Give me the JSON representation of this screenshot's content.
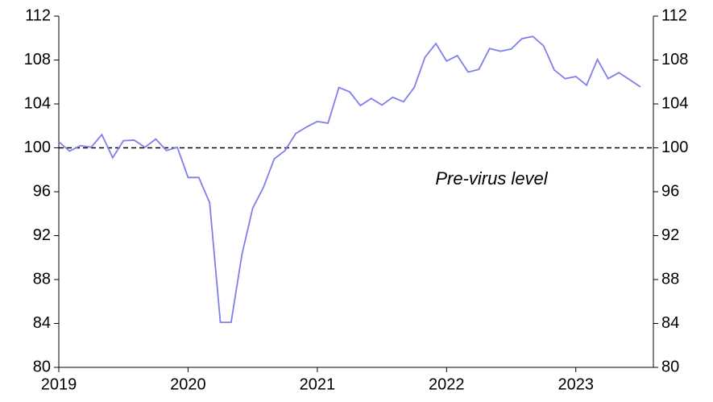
{
  "chart_data": {
    "type": "line",
    "x": [
      2019.0,
      2019.083,
      2019.167,
      2019.25,
      2019.333,
      2019.417,
      2019.5,
      2019.583,
      2019.667,
      2019.75,
      2019.833,
      2019.917,
      2020.0,
      2020.083,
      2020.167,
      2020.25,
      2020.333,
      2020.417,
      2020.5,
      2020.583,
      2020.667,
      2020.75,
      2020.833,
      2020.917,
      2021.0,
      2021.083,
      2021.167,
      2021.25,
      2021.333,
      2021.417,
      2021.5,
      2021.583,
      2021.667,
      2021.75,
      2021.833,
      2021.917,
      2022.0,
      2022.083,
      2022.167,
      2022.25,
      2022.333,
      2022.417,
      2022.5,
      2022.583,
      2022.667,
      2022.75,
      2022.833,
      2022.917,
      2023.0,
      2023.083,
      2023.167,
      2023.25,
      2023.333,
      2023.417,
      2023.5
    ],
    "series": [
      {
        "color": "#7f7fea",
        "values": [
          100.55,
          99.7,
          100.2,
          100.05,
          101.2,
          99.1,
          100.65,
          100.7,
          100.05,
          100.8,
          99.75,
          100.05,
          97.3,
          97.3,
          95.0,
          84.1,
          84.1,
          90.3,
          94.5,
          96.4,
          99.0,
          99.75,
          101.3,
          101.9,
          102.4,
          102.25,
          105.5,
          105.1,
          103.85,
          104.5,
          103.9,
          104.6,
          104.2,
          105.5,
          108.25,
          109.5,
          107.9,
          108.4,
          106.9,
          107.15,
          109.05,
          108.8,
          109.0,
          109.95,
          110.15,
          109.3,
          107.1,
          106.3,
          106.5,
          105.7,
          108.05,
          106.3,
          106.85,
          106.2,
          105.55
        ]
      }
    ],
    "xlim": [
      2019,
      2023.6
    ],
    "xticks": [
      2019,
      2020,
      2021,
      2022,
      2023
    ],
    "ylim": [
      80,
      112
    ],
    "yticks": [
      80,
      84,
      88,
      92,
      96,
      100,
      104,
      108,
      112
    ],
    "y2lim": [
      80,
      112
    ],
    "y2ticks": [
      80,
      84,
      88,
      92,
      96,
      100,
      104,
      108,
      112
    ],
    "reference_line": {
      "value": 100,
      "label": "Pre-virus level"
    }
  }
}
